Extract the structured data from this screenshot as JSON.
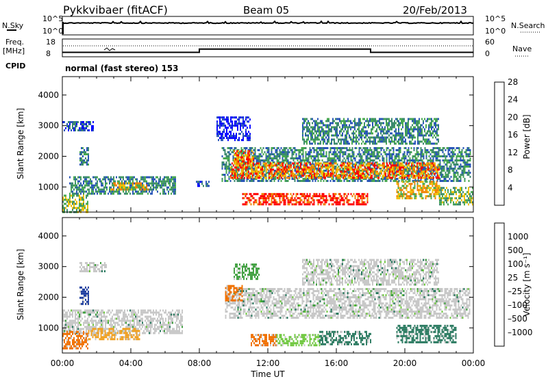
{
  "header": {
    "station": "Pykkvibaer (fitACF)",
    "beam": "Beam 05",
    "date": "20/Feb/2013"
  },
  "nsky_panel": {
    "left_label": "N.Sky",
    "left_ticks": [
      "10^5",
      "10^0"
    ],
    "right_ticks": [
      "10^5",
      "10^0"
    ],
    "right_label": "N.Search"
  },
  "freq_panel": {
    "left_label_1": "Freq.",
    "left_label_2": "[MHz]",
    "left_ticks": [
      "18",
      "8"
    ],
    "right_ticks": [
      "60",
      "0"
    ],
    "right_label": "Nave",
    "freq_steps": [
      {
        "from_hour": 0,
        "to_hour": 8,
        "mhz": 10.5
      },
      {
        "from_hour": 8,
        "to_hour": 18,
        "mhz": 12.3
      },
      {
        "from_hour": 18,
        "to_hour": 24,
        "mhz": 10.5
      }
    ],
    "dotted_level_mhz": 13.2
  },
  "cpid": {
    "label": "CPID",
    "value": "normal (fast stereo) 153"
  },
  "chart_data": [
    {
      "type": "heatmap",
      "name": "power",
      "ylabel": "Slant Range [km]",
      "ylim": [
        180,
        4600
      ],
      "xlim_hours": [
        0,
        24
      ],
      "yticks": [
        "4000",
        "3000",
        "2000",
        "1000"
      ],
      "colorbar": {
        "label": "Power [dB]",
        "ticks": [
          "28",
          "24",
          "20",
          "16",
          "12",
          "8",
          "4"
        ],
        "colors": [
          "#0000ff",
          "#2855b8",
          "#3c8a6e",
          "#48a850",
          "#f0c000",
          "#f08000",
          "#ff0000"
        ]
      },
      "echo_bands": [
        {
          "t0": 0.0,
          "t1": 1.8,
          "r0": 2850,
          "r1": 3150,
          "level": 1
        },
        {
          "t0": 1.0,
          "t1": 1.5,
          "r0": 1700,
          "r1": 2300,
          "level": 2
        },
        {
          "t0": 0.4,
          "t1": 6.6,
          "r0": 800,
          "r1": 1350,
          "level": 2
        },
        {
          "t0": 2.8,
          "t1": 5.0,
          "r0": 900,
          "r1": 1150,
          "level": 4
        },
        {
          "t0": 0.0,
          "t1": 1.5,
          "r0": 200,
          "r1": 750,
          "level": 3
        },
        {
          "t0": 7.8,
          "t1": 8.6,
          "r0": 1000,
          "r1": 1200,
          "level": 1
        },
        {
          "t0": 9.3,
          "t1": 23.8,
          "r0": 1200,
          "r1": 2300,
          "level": 2
        },
        {
          "t0": 9.8,
          "t1": 22.0,
          "r0": 1300,
          "r1": 1800,
          "level": 5
        },
        {
          "t0": 10.0,
          "t1": 11.2,
          "r0": 1700,
          "r1": 2200,
          "level": 5
        },
        {
          "t0": 10.5,
          "t1": 17.8,
          "r0": 450,
          "r1": 800,
          "level": 6
        },
        {
          "t0": 14.0,
          "t1": 22.0,
          "r0": 2400,
          "r1": 3250,
          "level": 2
        },
        {
          "t0": 19.5,
          "t1": 22.0,
          "r0": 600,
          "r1": 1200,
          "level": 4
        },
        {
          "t0": 22.0,
          "t1": 24.0,
          "r0": 400,
          "r1": 1000,
          "level": 3
        },
        {
          "t0": 9.0,
          "t1": 11.0,
          "r0": 2500,
          "r1": 3300,
          "level": 0
        }
      ]
    },
    {
      "type": "heatmap",
      "name": "velocity",
      "ylabel": "Slant Range [km]",
      "ylim": [
        180,
        4600
      ],
      "xlim_hours": [
        0,
        24
      ],
      "yticks": [
        "4000",
        "3000",
        "2000",
        "1000"
      ],
      "xticks": [
        "00:00",
        "04:00",
        "08:00",
        "12:00",
        "16:00",
        "20:00",
        "00:00"
      ],
      "xlabel": "Time UT",
      "colorbar": {
        "label": "Velocity [m s⁻¹]",
        "ticks": [
          "1000",
          "500",
          "100",
          "25",
          "–25",
          "–100",
          "–500",
          "–1000"
        ],
        "colors": [
          "#2040a0",
          "#2a7a60",
          "#40a040",
          "#70c840",
          "#c8c8c8",
          "#c8c8c8",
          "#f0a020",
          "#f07000",
          "#ff0000"
        ]
      },
      "echo_bands": [
        {
          "t0": 0.0,
          "t1": 7.0,
          "r0": 800,
          "r1": 1600,
          "color": 4
        },
        {
          "t0": 1.0,
          "t1": 2.6,
          "r0": 2850,
          "r1": 3150,
          "color": 4
        },
        {
          "t0": 1.0,
          "t1": 1.5,
          "r0": 1750,
          "r1": 2350,
          "color": 0
        },
        {
          "t0": 0.0,
          "t1": 1.5,
          "r0": 300,
          "r1": 900,
          "color": 7
        },
        {
          "t0": 1.5,
          "t1": 4.5,
          "r0": 600,
          "r1": 1000,
          "color": 6
        },
        {
          "t0": 9.5,
          "t1": 23.8,
          "r0": 1300,
          "r1": 2300,
          "color": 4
        },
        {
          "t0": 14.0,
          "t1": 22.0,
          "r0": 2400,
          "r1": 3250,
          "color": 4
        },
        {
          "t0": 11.0,
          "t1": 12.5,
          "r0": 450,
          "r1": 800,
          "color": 7
        },
        {
          "t0": 12.5,
          "t1": 15.0,
          "r0": 450,
          "r1": 800,
          "color": 3
        },
        {
          "t0": 15.0,
          "t1": 18.0,
          "r0": 450,
          "r1": 900,
          "color": 1
        },
        {
          "t0": 19.5,
          "t1": 23.0,
          "r0": 500,
          "r1": 1100,
          "color": 1
        },
        {
          "t0": 9.5,
          "t1": 10.5,
          "r0": 1900,
          "r1": 2400,
          "color": 7
        },
        {
          "t0": 10.0,
          "t1": 11.5,
          "r0": 2600,
          "r1": 3100,
          "color": 2
        }
      ]
    }
  ]
}
